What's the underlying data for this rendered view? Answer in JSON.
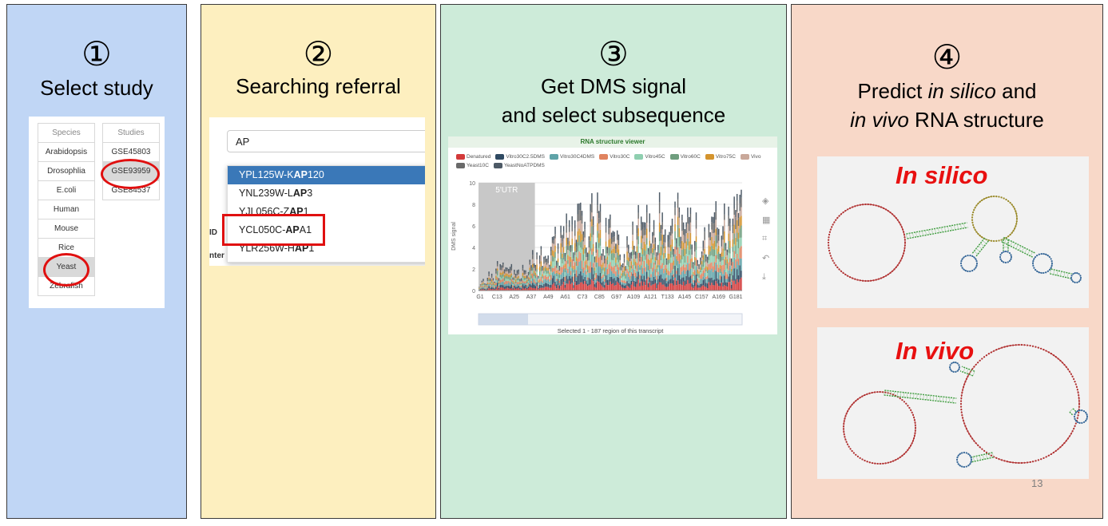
{
  "panels": [
    {
      "number": "①",
      "title": "Select study"
    },
    {
      "number": "②",
      "title": "Searching referral"
    },
    {
      "number": "③",
      "title_line1": "Get DMS signal",
      "title_line2": "and select subsequence"
    },
    {
      "number": "④",
      "title_line1_a": "Predict ",
      "title_line1_b": "in silico",
      "title_line1_c": " and",
      "title_line2_a": "in vivo",
      "title_line2_b": " RNA structure"
    }
  ],
  "study_selector": {
    "species_header": "Species",
    "species": [
      "Arabidopsis",
      "Drosophlia",
      "E.coli",
      "Human",
      "Mouse",
      "Rice",
      "Yeast",
      "Zebrafish"
    ],
    "selected_species": "Yeast",
    "studies_header": "Studies",
    "studies": [
      "GSE45803",
      "GSE93959",
      "GSE84537"
    ],
    "selected_study": "GSE93959"
  },
  "search": {
    "query": "AP",
    "results": [
      {
        "pre": "YPL125W-K",
        "match": "AP",
        "post": "120"
      },
      {
        "pre": "YNL239W-L",
        "match": "AP",
        "post": "3"
      },
      {
        "pre": "YJL056C-Z",
        "match": "AP",
        "post": "1"
      },
      {
        "pre": "YCL050C-",
        "match": "AP",
        "post": "A1"
      },
      {
        "pre": "YLR256W-H",
        "match": "AP",
        "post": "1"
      }
    ],
    "active_index": 0,
    "highlighted_index": 3,
    "stub_labels": [
      "ID",
      "nter"
    ]
  },
  "viewer": {
    "header": "RNA structure viewer",
    "legend": [
      {
        "name": "Denatured",
        "color": "#d33a3a"
      },
      {
        "name": "Vitro30C2.5DMS",
        "color": "#2f4a62"
      },
      {
        "name": "Vitro30C4DMS",
        "color": "#5fa3a8"
      },
      {
        "name": "Vitro30C",
        "color": "#e0835f"
      },
      {
        "name": "Vitro45C",
        "color": "#8fcfb0"
      },
      {
        "name": "Vitro60C",
        "color": "#6f9e7e"
      },
      {
        "name": "Vitro75C",
        "color": "#d4942e"
      },
      {
        "name": "Vivo",
        "color": "#c9a89a"
      },
      {
        "name": "Yeast10C",
        "color": "#6a6a6a"
      },
      {
        "name": "YeastNoATPDMS",
        "color": "#4d5a66"
      }
    ],
    "utr_label": "5'UTR",
    "ylabel": "DMS signal",
    "caption": "Selected 1 - 187 region of this transcript",
    "icons": [
      "layers-icon",
      "grid-icon",
      "crop-icon",
      "undo-icon",
      "download-icon"
    ]
  },
  "chart_data": {
    "type": "bar",
    "stacked": true,
    "ylabel": "DMS signal",
    "ylim": [
      0,
      10
    ],
    "yticks": [
      0,
      2,
      4,
      6,
      8,
      10
    ],
    "xtick_labels": [
      "G1",
      "C13",
      "A25",
      "A37",
      "A49",
      "A61",
      "C73",
      "C85",
      "G97",
      "A109",
      "A121",
      "T133",
      "A145",
      "C157",
      "A169",
      "G181"
    ],
    "region_label": "5'UTR",
    "region_range": [
      1,
      40
    ],
    "selected_range": [
      1,
      187
    ],
    "n_positions": 187,
    "approx_stack_totals_profile": [
      0.5,
      3,
      2,
      4,
      6,
      8,
      9,
      7,
      6,
      9,
      8,
      9,
      7,
      8,
      9
    ]
  },
  "rna": {
    "silico_label": "In silico",
    "vivo_label": "In vivo"
  },
  "page_number": "13"
}
